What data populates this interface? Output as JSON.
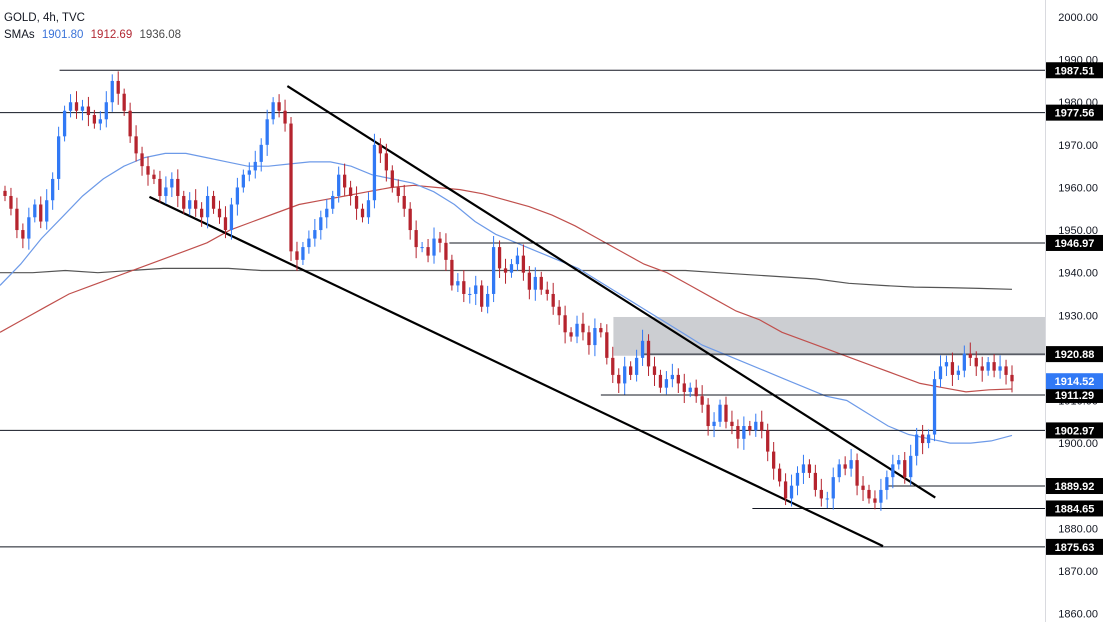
{
  "header": {
    "title": "GOLD, 4h, TVC",
    "sma_label": "SMAs",
    "sma_values": [
      "1901.80",
      "1912.69",
      "1936.08"
    ]
  },
  "colors": {
    "up": "#3179f5",
    "down": "#b5242e",
    "sma_fast": "#6d9ae8",
    "sma_mid": "#c0504d",
    "sma_slow": "#555555",
    "zone": "#c9cbd0",
    "last_price_bg": "#3179f5"
  },
  "chart_data": {
    "type": "candlestick",
    "title": "GOLD, 4h, TVC",
    "y_axis": {
      "range": [
        1858,
        2004
      ],
      "ticks": [
        "2000.00",
        "1990.00",
        "1980.00",
        "1970.00",
        "1960.00",
        "1950.00",
        "1940.00",
        "1930.00",
        "1920.00",
        "1910.00",
        "1900.00",
        "1890.00",
        "1880.00",
        "1870.00",
        "1860.00"
      ]
    },
    "price_labels": [
      {
        "value": 1987.51,
        "text": "1987.51",
        "x_from": 0.057
      },
      {
        "value": 1977.56,
        "text": "1977.56",
        "x_from": 0.0
      },
      {
        "value": 1946.97,
        "text": "1946.97",
        "x_from": 0.43
      },
      {
        "value": 1920.88,
        "text": "1920.88",
        "x_from": 0.615
      },
      {
        "value": 1911.29,
        "text": "1911.29",
        "x_from": 0.575
      },
      {
        "value": 1902.97,
        "text": "1902.97",
        "x_from": 0.0
      },
      {
        "value": 1889.92,
        "text": "1889.92",
        "x_from": 0.85
      },
      {
        "value": 1884.65,
        "text": "1884.65",
        "x_from": 0.72
      },
      {
        "value": 1875.63,
        "text": "1875.63",
        "x_from": 0.0
      }
    ],
    "last_price": {
      "value": 1914.52,
      "text": "1914.52"
    },
    "zone": {
      "from": 1920.5,
      "to": 1929.6,
      "x_from": 0.587
    },
    "trendlines": [
      {
        "from": [
          0.275,
          1983.8
        ],
        "to": [
          0.895,
          1887.2
        ]
      },
      {
        "from": [
          0.143,
          1957.8
        ],
        "to": [
          0.845,
          1875.8
        ]
      }
    ],
    "closes": [
      1958,
      1955,
      1950,
      1948,
      1953,
      1956,
      1952,
      1957,
      1962,
      1972,
      1978,
      1980,
      1978,
      1979,
      1977,
      1975,
      1976,
      1980,
      1985,
      1982,
      1978,
      1972,
      1968,
      1965,
      1963,
      1962,
      1958,
      1960,
      1962,
      1958,
      1955,
      1957,
      1955,
      1953,
      1958,
      1955,
      1953,
      1950,
      1956,
      1960,
      1963,
      1964,
      1966,
      1970,
      1976,
      1980,
      1978,
      1975,
      1945,
      1943,
      1946,
      1948,
      1950,
      1953,
      1955,
      1958,
      1963,
      1960,
      1958,
      1955,
      1953,
      1957,
      1970,
      1968,
      1964,
      1960,
      1958,
      1955,
      1950,
      1946,
      1946,
      1944,
      1948,
      1947,
      1943,
      1937,
      1938,
      1935,
      1935,
      1937,
      1932,
      1935,
      1946,
      1941,
      1940,
      1942,
      1944,
      1940,
      1936,
      1939,
      1936,
      1935,
      1932,
      1930,
      1926,
      1925,
      1928,
      1926,
      1923,
      1927,
      1926,
      1920,
      1916,
      1914,
      1918,
      1916,
      1920,
      1924,
      1918,
      1916,
      1913,
      1915,
      1916,
      1914,
      1912,
      1913,
      1911,
      1909,
      1904,
      1905,
      1909,
      1905,
      1904,
      1901,
      1904,
      1903,
      1905,
      1903,
      1898,
      1894,
      1891,
      1887,
      1890,
      1893,
      1895,
      1893,
      1889,
      1887,
      1887,
      1892,
      1895,
      1894,
      1896,
      1890,
      1889,
      1887,
      1886,
      1889,
      1892,
      1895,
      1896,
      1892,
      1897,
      1902,
      1900,
      1902,
      1915,
      1918,
      1919,
      1916,
      1917,
      1921,
      1920,
      1918,
      1917,
      1919,
      1917,
      1918,
      1916,
      1914.5
    ],
    "sma_fast": [
      1937,
      1942,
      1948,
      1953,
      1958,
      1962,
      1965,
      1967,
      1968,
      1968,
      1967,
      1966,
      1965,
      1965,
      1965.5,
      1966,
      1966,
      1965,
      1963,
      1962,
      1961,
      1959,
      1956,
      1952,
      1949,
      1947,
      1945,
      1943,
      1941,
      1938,
      1935,
      1932,
      1929,
      1926,
      1923,
      1921,
      1919,
      1917,
      1915,
      1913,
      1911,
      1910,
      1907,
      1904,
      1902,
      1901,
      1900,
      1900,
      1900.5,
      1901.8
    ],
    "sma_mid": [
      1926,
      1929,
      1932,
      1935,
      1937,
      1939,
      1941,
      1943,
      1945,
      1947,
      1950,
      1952,
      1954,
      1956,
      1957,
      1958,
      1959,
      1960,
      1960.5,
      1960,
      1959.5,
      1958.5,
      1957,
      1955.5,
      1953.5,
      1951,
      1948,
      1945,
      1942,
      1940,
      1937,
      1934,
      1931,
      1929,
      1926,
      1924,
      1922,
      1920,
      1918,
      1916,
      1914,
      1913,
      1912,
      1912.5,
      1912.7
    ],
    "sma_slow": [
      1940,
      1940,
      1940.5,
      1940,
      1940.5,
      1941,
      1941,
      1941,
      1940.5,
      1940.5,
      1940.5,
      1940.5,
      1940.5,
      1940.5,
      1940.5,
      1940.5,
      1940.5,
      1940.5,
      1940.5,
      1940.5,
      1940.5,
      1940.5,
      1940,
      1939.5,
      1939,
      1938.5,
      1937.5,
      1937,
      1936.6,
      1936.5,
      1936.3,
      1936.1
    ]
  }
}
